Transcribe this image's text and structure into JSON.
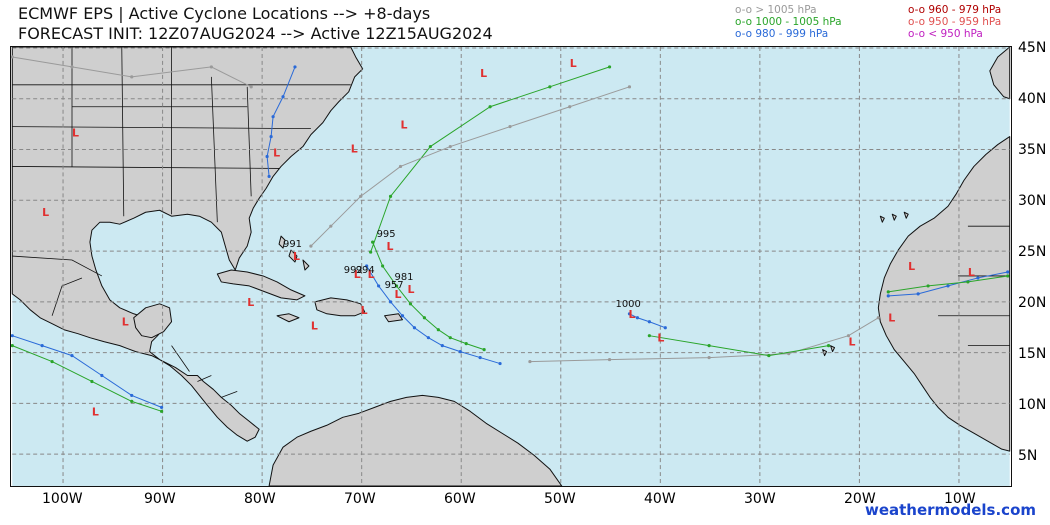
{
  "title_line1": "ECMWF EPS | Active Cyclone Locations --> +8-days",
  "title_line2": "FORECAST INIT: 12Z07AUG2024 --> Active 12Z15AUG2024",
  "legend": [
    {
      "label": "o-o > 1005 hPa",
      "color": "#9a9a9a"
    },
    {
      "label": "o-o 1000 - 1005 hPa",
      "color": "#2aa52a"
    },
    {
      "label": "o-o 980 - 999 hPa",
      "color": "#2a6ad8"
    },
    {
      "label": "o-o 960 - 979 hPa",
      "color": "#b00000"
    },
    {
      "label": "o-o 950 - 959 hPa",
      "color": "#e05050"
    },
    {
      "label": "o-o < 950 hPa",
      "color": "#c020c0"
    }
  ],
  "lat_labels": [
    "45N",
    "40N",
    "35N",
    "30N",
    "25N",
    "20N",
    "15N",
    "10N",
    "5N"
  ],
  "lon_labels": [
    "100W",
    "90W",
    "80W",
    "70W",
    "60W",
    "50W",
    "40W",
    "30W",
    "20W",
    "10W"
  ],
  "pressure_labels": [
    "991",
    "995",
    "992",
    "994",
    "981",
    "957",
    "1000"
  ],
  "credit": "weathermodels.com",
  "colors": {
    "ocean": "#cce9f2",
    "land": "#cfcfcf",
    "grid": "#888888"
  }
}
